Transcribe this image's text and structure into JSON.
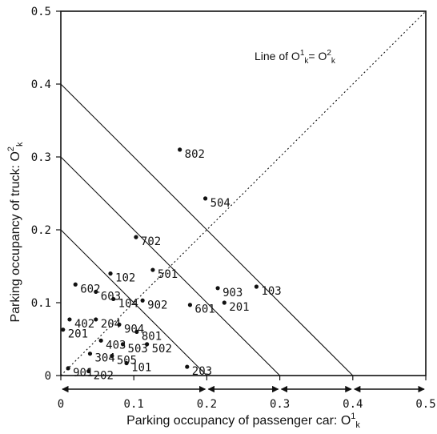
{
  "chart_data": {
    "type": "scatter",
    "xlabel": "Parking occupancy of passenger car: O",
    "xlabel_sup": "1",
    "xlabel_sub": "k",
    "ylabel": "Parking occupancy of truck: O",
    "ylabel_sup": "2",
    "ylabel_sub": "k",
    "xlim": [
      0,
      0.5
    ],
    "ylim": [
      0,
      0.5
    ],
    "x_ticks": [
      {
        "v": 0,
        "label": "0"
      },
      {
        "v": 0.1,
        "label": "0.1"
      },
      {
        "v": 0.2,
        "label": "0.2"
      },
      {
        "v": 0.3,
        "label": "0.3"
      },
      {
        "v": 0.4,
        "label": "0.4"
      },
      {
        "v": 0.5,
        "label": "0.5"
      }
    ],
    "y_ticks": [
      {
        "v": 0,
        "label": "0"
      },
      {
        "v": 0.1,
        "label": "0.1"
      },
      {
        "v": 0.2,
        "label": "0.2"
      },
      {
        "v": 0.3,
        "label": "0.3"
      },
      {
        "v": 0.4,
        "label": "0.4"
      },
      {
        "v": 0.5,
        "label": "0.5"
      }
    ],
    "grid": false,
    "annotation": {
      "text": "Line of O",
      "sup1": "1",
      "sub1": "k",
      "mid": "= O",
      "sup2": "2",
      "sub2": "k"
    },
    "reference_lines": [
      {
        "kind": "diagonal",
        "style": "dashed",
        "from": [
          0,
          0
        ],
        "to": [
          0.5,
          0.5
        ]
      },
      {
        "kind": "iso-sum",
        "style": "solid",
        "sum": 0.2
      },
      {
        "kind": "iso-sum",
        "style": "solid",
        "sum": 0.3
      },
      {
        "kind": "iso-sum",
        "style": "solid",
        "sum": 0.4
      }
    ],
    "range_arrows": [
      [
        0,
        0.2
      ],
      [
        0.2,
        0.3
      ],
      [
        0.3,
        0.4
      ],
      [
        0.4,
        0.5
      ]
    ],
    "points": [
      {
        "label": "802",
        "x": 0.163,
        "y": 0.31
      },
      {
        "label": "504",
        "x": 0.198,
        "y": 0.243
      },
      {
        "label": "702",
        "x": 0.103,
        "y": 0.19
      },
      {
        "label": "501",
        "x": 0.126,
        "y": 0.145
      },
      {
        "label": "102",
        "x": 0.068,
        "y": 0.14
      },
      {
        "label": "602",
        "x": 0.02,
        "y": 0.125
      },
      {
        "label": "603",
        "x": 0.048,
        "y": 0.115
      },
      {
        "label": "903",
        "x": 0.215,
        "y": 0.12
      },
      {
        "label": "103",
        "x": 0.268,
        "y": 0.122
      },
      {
        "label": "104",
        "x": 0.072,
        "y": 0.105
      },
      {
        "label": "902",
        "x": 0.112,
        "y": 0.103
      },
      {
        "label": "601",
        "x": 0.177,
        "y": 0.097
      },
      {
        "label": "201",
        "x": 0.224,
        "y": 0.1
      },
      {
        "label": "402",
        "x": 0.012,
        "y": 0.077
      },
      {
        "label": "204",
        "x": 0.048,
        "y": 0.077
      },
      {
        "label": "904",
        "x": 0.08,
        "y": 0.07
      },
      {
        "label": "201",
        "x": 0.003,
        "y": 0.063
      },
      {
        "label": "801",
        "x": 0.104,
        "y": 0.06
      },
      {
        "label": "403",
        "x": 0.055,
        "y": 0.048
      },
      {
        "label": "503",
        "x": 0.085,
        "y": 0.043
      },
      {
        "label": "502",
        "x": 0.118,
        "y": 0.043
      },
      {
        "label": "304",
        "x": 0.04,
        "y": 0.03
      },
      {
        "label": "505",
        "x": 0.07,
        "y": 0.027
      },
      {
        "label": "101",
        "x": 0.09,
        "y": 0.017
      },
      {
        "label": "901",
        "x": 0.01,
        "y": 0.01
      },
      {
        "label": "202",
        "x": 0.038,
        "y": 0.006
      },
      {
        "label": "203",
        "x": 0.173,
        "y": 0.012
      }
    ]
  }
}
